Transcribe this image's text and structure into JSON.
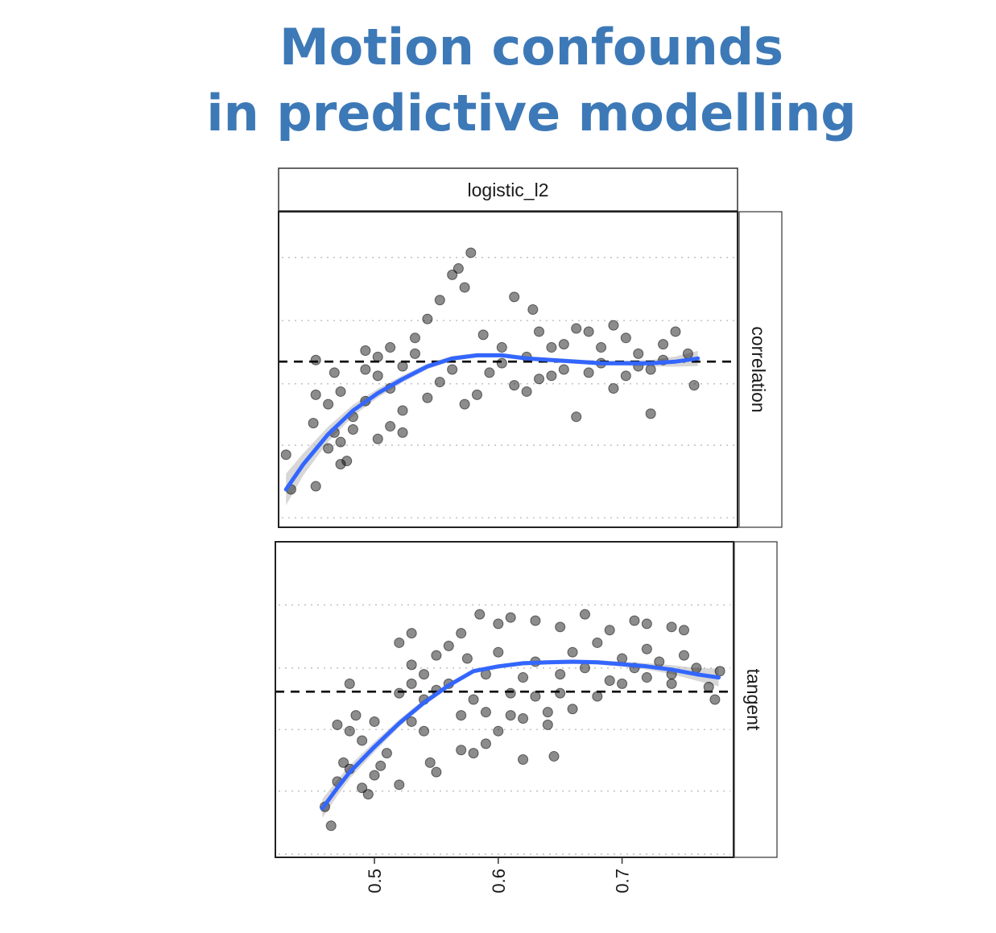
{
  "title_lines": [
    "Motion confounds",
    "in predictive modelling"
  ],
  "chart_data": {
    "type": "scatter",
    "facet_column": "logistic_l2",
    "xlabel": "",
    "ylabel": "",
    "xlim": [
      0.42,
      0.79
    ],
    "x_ticks": [
      0.5,
      0.6,
      0.7
    ],
    "x_tick_labels": [
      "0.5",
      "0.6",
      "0.7"
    ],
    "grid": "dotted horizontal",
    "point_color": "#000000",
    "smooth_color": "#3366ff",
    "band_color": "#bdbdbd",
    "panels": [
      {
        "name": "correlation",
        "ylim": [
          0,
          1
        ],
        "y_gridlines": [
          0.03,
          0.26,
          0.455,
          0.655,
          0.855
        ],
        "reference_line_y": 0.525,
        "smooth": {
          "x": [
            0.426,
            0.44,
            0.46,
            0.48,
            0.5,
            0.52,
            0.54,
            0.56,
            0.58,
            0.6,
            0.62,
            0.64,
            0.66,
            0.68,
            0.7,
            0.72,
            0.74,
            0.758
          ],
          "y": [
            0.12,
            0.2,
            0.295,
            0.37,
            0.425,
            0.47,
            0.51,
            0.535,
            0.545,
            0.545,
            0.535,
            0.53,
            0.525,
            0.52,
            0.52,
            0.52,
            0.525,
            0.535
          ],
          "band_half_width": [
            0.05,
            0.035,
            0.024,
            0.018,
            0.014,
            0.011,
            0.009,
            0.008,
            0.007,
            0.007,
            0.007,
            0.007,
            0.007,
            0.007,
            0.008,
            0.01,
            0.016,
            0.024
          ]
        },
        "points": [
          [
            0.43,
            0.12
          ],
          [
            0.45,
            0.13
          ],
          [
            0.426,
            0.23
          ],
          [
            0.47,
            0.27
          ],
          [
            0.475,
            0.21
          ],
          [
            0.47,
            0.2
          ],
          [
            0.46,
            0.25
          ],
          [
            0.45,
            0.42
          ],
          [
            0.448,
            0.33
          ],
          [
            0.465,
            0.3
          ],
          [
            0.48,
            0.35
          ],
          [
            0.49,
            0.4
          ],
          [
            0.46,
            0.39
          ],
          [
            0.47,
            0.43
          ],
          [
            0.48,
            0.31
          ],
          [
            0.49,
            0.5
          ],
          [
            0.5,
            0.48
          ],
          [
            0.51,
            0.44
          ],
          [
            0.52,
            0.37
          ],
          [
            0.51,
            0.32
          ],
          [
            0.5,
            0.28
          ],
          [
            0.52,
            0.3
          ],
          [
            0.49,
            0.56
          ],
          [
            0.465,
            0.49
          ],
          [
            0.45,
            0.53
          ],
          [
            0.5,
            0.54
          ],
          [
            0.51,
            0.57
          ],
          [
            0.52,
            0.51
          ],
          [
            0.53,
            0.6
          ],
          [
            0.54,
            0.66
          ],
          [
            0.55,
            0.72
          ],
          [
            0.56,
            0.8
          ],
          [
            0.57,
            0.76
          ],
          [
            0.575,
            0.87
          ],
          [
            0.585,
            0.61
          ],
          [
            0.6,
            0.57
          ],
          [
            0.61,
            0.73
          ],
          [
            0.62,
            0.54
          ],
          [
            0.625,
            0.69
          ],
          [
            0.64,
            0.48
          ],
          [
            0.65,
            0.58
          ],
          [
            0.66,
            0.35
          ],
          [
            0.67,
            0.62
          ],
          [
            0.68,
            0.52
          ],
          [
            0.69,
            0.44
          ],
          [
            0.7,
            0.6
          ],
          [
            0.71,
            0.55
          ],
          [
            0.72,
            0.5
          ],
          [
            0.73,
            0.58
          ],
          [
            0.74,
            0.62
          ],
          [
            0.75,
            0.55
          ],
          [
            0.755,
            0.45
          ],
          [
            0.72,
            0.36
          ],
          [
            0.69,
            0.64
          ],
          [
            0.63,
            0.62
          ],
          [
            0.58,
            0.42
          ],
          [
            0.57,
            0.39
          ],
          [
            0.55,
            0.46
          ],
          [
            0.54,
            0.41
          ],
          [
            0.53,
            0.55
          ],
          [
            0.56,
            0.5
          ],
          [
            0.59,
            0.49
          ],
          [
            0.6,
            0.52
          ],
          [
            0.61,
            0.45
          ],
          [
            0.62,
            0.43
          ],
          [
            0.63,
            0.47
          ],
          [
            0.64,
            0.57
          ],
          [
            0.65,
            0.5
          ],
          [
            0.66,
            0.63
          ],
          [
            0.67,
            0.49
          ],
          [
            0.68,
            0.57
          ],
          [
            0.7,
            0.48
          ],
          [
            0.71,
            0.51
          ],
          [
            0.73,
            0.53
          ],
          [
            0.565,
            0.82
          ]
        ]
      },
      {
        "name": "tangent",
        "ylim": [
          0,
          1
        ],
        "y_gridlines": [
          0.01,
          0.21,
          0.405,
          0.6,
          0.8
        ],
        "reference_line_y": 0.525,
        "smooth": {
          "x": [
            0.458,
            0.47,
            0.48,
            0.5,
            0.52,
            0.54,
            0.56,
            0.58,
            0.6,
            0.62,
            0.64,
            0.66,
            0.68,
            0.7,
            0.72,
            0.74,
            0.76,
            0.778
          ],
          "y": [
            0.155,
            0.22,
            0.27,
            0.35,
            0.425,
            0.49,
            0.545,
            0.59,
            0.605,
            0.615,
            0.618,
            0.62,
            0.618,
            0.612,
            0.605,
            0.595,
            0.58,
            0.57
          ],
          "band_half_width": [
            0.03,
            0.025,
            0.021,
            0.016,
            0.012,
            0.01,
            0.008,
            0.007,
            0.007,
            0.007,
            0.007,
            0.007,
            0.007,
            0.008,
            0.01,
            0.014,
            0.02,
            0.028
          ]
        },
        "points": [
          [
            0.46,
            0.16
          ],
          [
            0.465,
            0.1
          ],
          [
            0.47,
            0.24
          ],
          [
            0.48,
            0.28
          ],
          [
            0.475,
            0.3
          ],
          [
            0.49,
            0.22
          ],
          [
            0.495,
            0.2
          ],
          [
            0.5,
            0.26
          ],
          [
            0.51,
            0.33
          ],
          [
            0.52,
            0.23
          ],
          [
            0.505,
            0.29
          ],
          [
            0.49,
            0.37
          ],
          [
            0.48,
            0.4
          ],
          [
            0.47,
            0.42
          ],
          [
            0.5,
            0.43
          ],
          [
            0.485,
            0.45
          ],
          [
            0.48,
            0.55
          ],
          [
            0.52,
            0.52
          ],
          [
            0.53,
            0.43
          ],
          [
            0.54,
            0.4
          ],
          [
            0.545,
            0.3
          ],
          [
            0.55,
            0.27
          ],
          [
            0.57,
            0.34
          ],
          [
            0.58,
            0.33
          ],
          [
            0.59,
            0.36
          ],
          [
            0.6,
            0.4
          ],
          [
            0.61,
            0.45
          ],
          [
            0.62,
            0.31
          ],
          [
            0.64,
            0.46
          ],
          [
            0.645,
            0.32
          ],
          [
            0.64,
            0.42
          ],
          [
            0.66,
            0.47
          ],
          [
            0.68,
            0.51
          ],
          [
            0.7,
            0.55
          ],
          [
            0.72,
            0.57
          ],
          [
            0.74,
            0.58
          ],
          [
            0.76,
            0.6
          ],
          [
            0.775,
            0.5
          ],
          [
            0.779,
            0.59
          ],
          [
            0.77,
            0.54
          ],
          [
            0.75,
            0.72
          ],
          [
            0.74,
            0.73
          ],
          [
            0.72,
            0.74
          ],
          [
            0.71,
            0.75
          ],
          [
            0.69,
            0.72
          ],
          [
            0.67,
            0.77
          ],
          [
            0.65,
            0.73
          ],
          [
            0.63,
            0.75
          ],
          [
            0.61,
            0.76
          ],
          [
            0.6,
            0.74
          ],
          [
            0.585,
            0.77
          ],
          [
            0.57,
            0.71
          ],
          [
            0.56,
            0.67
          ],
          [
            0.55,
            0.64
          ],
          [
            0.53,
            0.61
          ],
          [
            0.52,
            0.68
          ],
          [
            0.53,
            0.71
          ],
          [
            0.54,
            0.58
          ],
          [
            0.56,
            0.55
          ],
          [
            0.575,
            0.63
          ],
          [
            0.59,
            0.58
          ],
          [
            0.6,
            0.65
          ],
          [
            0.62,
            0.57
          ],
          [
            0.63,
            0.62
          ],
          [
            0.65,
            0.58
          ],
          [
            0.66,
            0.65
          ],
          [
            0.67,
            0.6
          ],
          [
            0.68,
            0.68
          ],
          [
            0.69,
            0.56
          ],
          [
            0.7,
            0.63
          ],
          [
            0.71,
            0.6
          ],
          [
            0.72,
            0.66
          ],
          [
            0.73,
            0.62
          ],
          [
            0.74,
            0.55
          ],
          [
            0.75,
            0.64
          ],
          [
            0.58,
            0.5
          ],
          [
            0.57,
            0.45
          ],
          [
            0.59,
            0.46
          ],
          [
            0.61,
            0.52
          ],
          [
            0.63,
            0.51
          ],
          [
            0.62,
            0.44
          ],
          [
            0.65,
            0.52
          ],
          [
            0.55,
            0.53
          ],
          [
            0.54,
            0.5
          ],
          [
            0.53,
            0.55
          ]
        ]
      }
    ]
  }
}
